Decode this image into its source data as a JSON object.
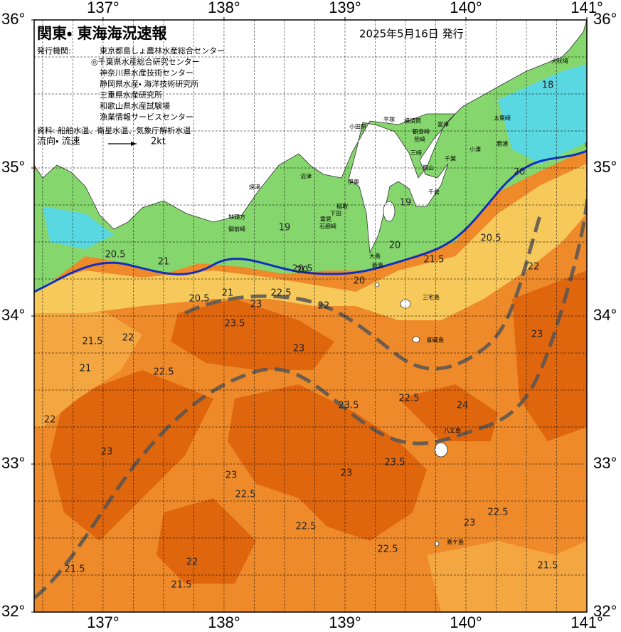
{
  "header": {
    "title": "関東・ 東海海況速報",
    "date": "2025年5月16日 発行",
    "agencies_label": "発行機関:",
    "agencies": [
      "東京都島しょ農林水産総合センター",
      "◎千葉県水産総合研究センター",
      "神奈川県水産技術センター",
      "静岡県水産・ 海洋技術研究所",
      "三重県水産研究所",
      "和歌山県水産試験場",
      "漁業情報サービスセンター"
    ],
    "source": "資料: 船舶水温、衛星水温、気象庁解析水温",
    "current_label": "流向・ 流速",
    "current_scale": "2kt"
  },
  "map": {
    "lonlim": [
      136.43,
      141
    ],
    "latlim": [
      32,
      36
    ],
    "lonticks": [
      {
        "value": 137,
        "label": "137°"
      },
      {
        "value": 138,
        "label": "138°"
      },
      {
        "value": 139,
        "label": "139°"
      },
      {
        "value": 140,
        "label": "140°"
      },
      {
        "value": 141,
        "label": "141°"
      }
    ],
    "latticks": [
      {
        "value": 32,
        "label": "32°"
      },
      {
        "value": 33,
        "label": "33°"
      },
      {
        "value": 34,
        "label": "34°"
      },
      {
        "value": 35,
        "label": "35°"
      },
      {
        "value": 36,
        "label": "36°"
      }
    ],
    "places": [
      "犬吠埼",
      "太東崎",
      "勝浦",
      "小湊",
      "千葉",
      "富津",
      "館山",
      "千倉",
      "横須賀",
      "観音崎",
      "荒崎",
      "三崎",
      "平塚",
      "小田原",
      "沼津",
      "焼津",
      "伊東",
      "稲取",
      "下田",
      "雲見",
      "石廊崎",
      "地頭方",
      "御前崎",
      "大島",
      "新島",
      "三宅島",
      "御蔵島",
      "八丈島",
      "青ケ島"
    ],
    "contour_labels": [
      "20.5",
      "21",
      "20",
      "20.5",
      "21",
      "22",
      "22.5",
      "23",
      "23.5",
      "23",
      "22",
      "22.5",
      "21.5",
      "21",
      "20",
      "19",
      "19",
      "20",
      "20.5",
      "21.5",
      "22",
      "23",
      "23.5",
      "22.5",
      "24",
      "22",
      "23",
      "22.5",
      "23",
      "23.5",
      "22.5",
      "23",
      "22",
      "21.5",
      "21.5",
      "22.5",
      "23",
      "22.5",
      "21.5",
      "18",
      "20",
      "20.5"
    ]
  }
}
